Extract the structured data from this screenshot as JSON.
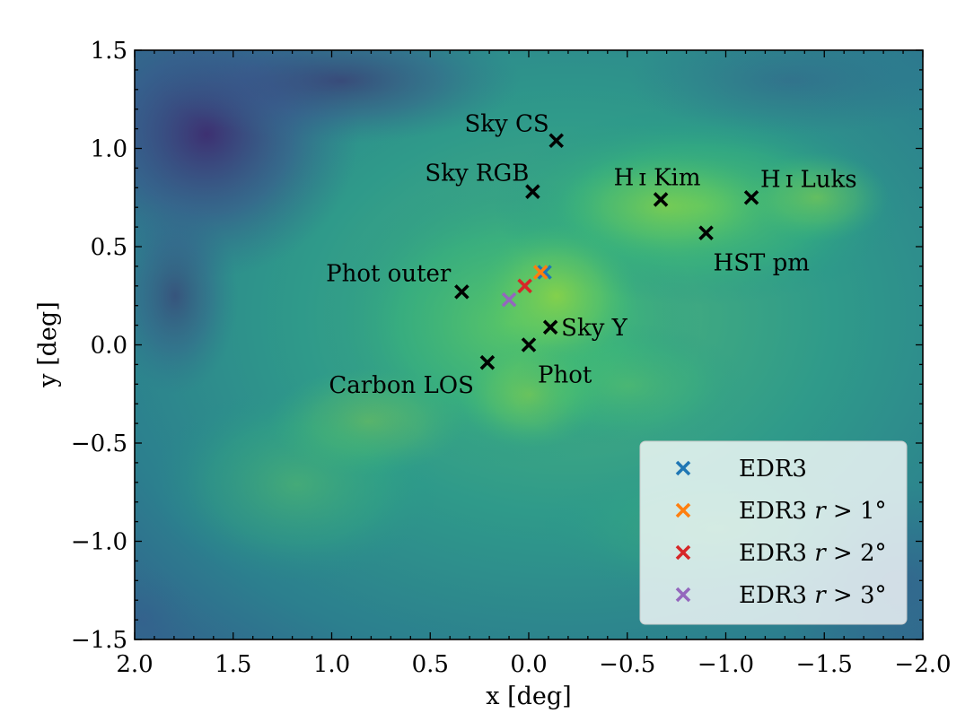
{
  "chart_data": {
    "type": "scatter",
    "xlabel": "x [deg]",
    "ylabel": "y [deg]",
    "xlim": [
      2.0,
      -2.0
    ],
    "ylim": [
      -1.5,
      1.5
    ],
    "x_inverted": true,
    "background": "density map (viridis colormap)",
    "xticks": [
      2.0,
      1.5,
      1.0,
      0.5,
      0.0,
      -0.5,
      -1.0,
      -1.5,
      -2.0
    ],
    "xtick_labels": [
      "2.0",
      "1.5",
      "1.0",
      "0.5",
      "0.0",
      "−0.5",
      "−1.0",
      "−1.5",
      "−2.0"
    ],
    "yticks": [
      1.5,
      1.0,
      0.5,
      0.0,
      -0.5,
      -1.0,
      -1.5
    ],
    "ytick_labels": [
      "1.5",
      "1.0",
      "0.5",
      "0.0",
      "−0.5",
      "−1.0",
      "−1.5"
    ],
    "grid": false,
    "legend_position": "bottom-right",
    "annotations": [
      {
        "name": "Sky CS",
        "x": -0.14,
        "y": 1.04,
        "label": "Sky CS",
        "label_anchor": "end",
        "label_dx": -8,
        "label_dy": -10
      },
      {
        "name": "Sky RGB",
        "x": -0.02,
        "y": 0.78,
        "label": "Sky RGB",
        "label_anchor": "end",
        "label_dx": -4,
        "label_dy": -12
      },
      {
        "name": "HI Kim",
        "x": -0.67,
        "y": 0.74,
        "label": "H ɪ Kim",
        "label_anchor": "middle",
        "label_dx": -4,
        "label_dy": -16
      },
      {
        "name": "HI Luks",
        "x": -1.13,
        "y": 0.75,
        "label": "H ɪ Luks",
        "label_anchor": "start",
        "label_dx": 10,
        "label_dy": -12
      },
      {
        "name": "HST pm",
        "x": -0.9,
        "y": 0.57,
        "label": "HST pm",
        "label_anchor": "start",
        "label_dx": 8,
        "label_dy": 42
      },
      {
        "name": "Phot outer",
        "x": 0.34,
        "y": 0.27,
        "label": "Phot outer",
        "label_anchor": "end",
        "label_dx": -12,
        "label_dy": -12
      },
      {
        "name": "Sky Y",
        "x": -0.11,
        "y": 0.09,
        "label": "Sky Y",
        "label_anchor": "start",
        "label_dx": 12,
        "label_dy": 9
      },
      {
        "name": "Phot",
        "x": 0.0,
        "y": 0.0,
        "label": "Phot",
        "label_anchor": "start",
        "label_dx": 10,
        "label_dy": 42
      },
      {
        "name": "Carbon LOS",
        "x": 0.21,
        "y": -0.09,
        "label": "Carbon LOS",
        "label_anchor": "end",
        "label_dx": -15,
        "label_dy": 34
      }
    ],
    "series": [
      {
        "name": "EDR3",
        "label_prefix": "EDR3",
        "label_suffix": "",
        "color": "#1f77b4",
        "x": [
          -0.08
        ],
        "y": [
          0.37
        ]
      },
      {
        "name": "EDR3 r > 1°",
        "label_prefix": "EDR3 ",
        "label_suffix": " > 1°",
        "color": "#ff7f0e",
        "x": [
          -0.06
        ],
        "y": [
          0.37
        ]
      },
      {
        "name": "EDR3 r > 2°",
        "label_prefix": "EDR3 ",
        "label_suffix": " > 2°",
        "color": "#d62728",
        "x": [
          0.02
        ],
        "y": [
          0.3
        ]
      },
      {
        "name": "EDR3 r > 3°",
        "label_prefix": "EDR3 ",
        "label_suffix": " > 3°",
        "color": "#9467bd",
        "x": [
          0.1
        ],
        "y": [
          0.23
        ]
      }
    ],
    "marker_color": "#000000"
  }
}
